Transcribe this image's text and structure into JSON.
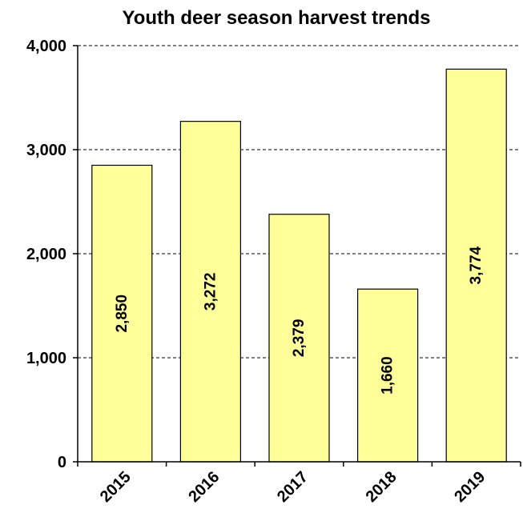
{
  "chart_data": {
    "type": "bar",
    "title": "Youth deer season harvest trends",
    "xlabel": "",
    "ylabel": "",
    "categories": [
      "2015",
      "2016",
      "2017",
      "2018",
      "2019"
    ],
    "values": [
      2850,
      3272,
      2379,
      1660,
      3774
    ],
    "value_labels": [
      "2,850",
      "3,272",
      "2,379",
      "1,660",
      "3,774"
    ],
    "ylim": [
      0,
      4000
    ],
    "yticks": [
      0,
      1000,
      2000,
      3000,
      4000
    ],
    "ytick_labels": [
      "0",
      "1,000",
      "2,000",
      "3,000",
      "4,000"
    ],
    "grid": "horizontal dashed",
    "legend": "none",
    "colors": {
      "bar_fill": "#ffff99",
      "bar_stroke": "#000000"
    }
  }
}
